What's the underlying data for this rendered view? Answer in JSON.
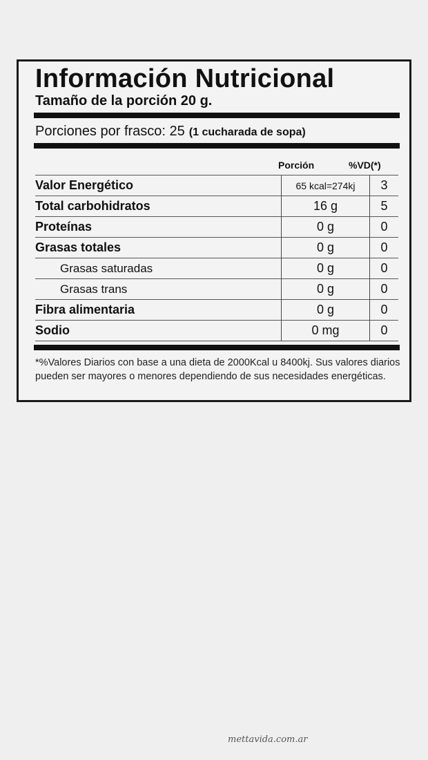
{
  "title": "Información Nutricional",
  "serving_size": "Tamaño de la porción 20 g.",
  "portions": {
    "text": "Porciones por frasco: 25",
    "note": "(1 cucharada de sopa)"
  },
  "headers": {
    "portion": "Porción",
    "dv": "%VD(*)"
  },
  "rows": [
    {
      "name": "Valor Energético",
      "portion": "65 kcal=274kj",
      "dv": "3"
    },
    {
      "name": "Total carbohidratos",
      "portion": "16 g",
      "dv": "5"
    },
    {
      "name": "Proteínas",
      "portion": "0 g",
      "dv": "0"
    },
    {
      "name": "Grasas totales",
      "portion": "0 g",
      "dv": "0"
    },
    {
      "name": "Grasas saturadas",
      "portion": "0 g",
      "dv": "0"
    },
    {
      "name": "Grasas trans",
      "portion": "0 g",
      "dv": "0"
    },
    {
      "name": "Fibra alimentaria",
      "portion": "0 g",
      "dv": "0"
    },
    {
      "name": "Sodio",
      "portion": "0 mg",
      "dv": "0"
    }
  ],
  "footnote": "*%Valores Diarios con base a una dieta de 2000Kcal u 8400kj. Sus valores diarios pueden ser mayores o menores dependiendo de sus necesidades energéticas.",
  "watermark": "mettavida.com.ar"
}
